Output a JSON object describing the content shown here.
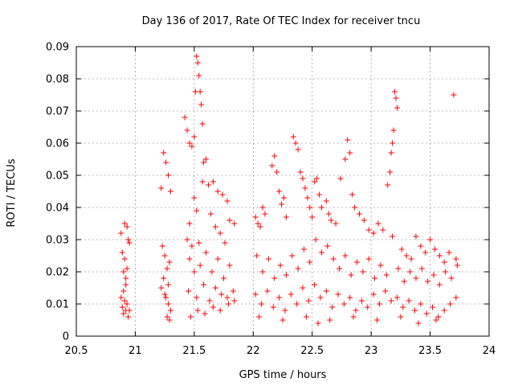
{
  "chart_data": {
    "type": "scatter",
    "title": "Day 136 of 2017, Rate Of TEC Index for receiver tncu",
    "xlabel": "GPS time / hours",
    "ylabel": "ROTI / TECUs",
    "xlim": [
      20.5,
      24
    ],
    "ylim": [
      0,
      0.09
    ],
    "x_ticks": [
      20.5,
      21,
      21.5,
      22,
      22.5,
      23,
      23.5,
      24
    ],
    "x_tick_labels": [
      "20.5",
      "21",
      "21.5",
      "22",
      "22.5",
      "23",
      "23.5",
      "24"
    ],
    "y_ticks": [
      0,
      0.01,
      0.02,
      0.03,
      0.04,
      0.05,
      0.06,
      0.07,
      0.08,
      0.09
    ],
    "y_tick_labels": [
      "0",
      "0.01",
      "0.02",
      "0.03",
      "0.04",
      "0.05",
      "0.06",
      "0.07",
      "0.08",
      "0.09"
    ],
    "grid": true,
    "marker": "+",
    "series": [
      {
        "name": "ROTI",
        "color": "#ff0000",
        "points": [
          [
            20.88,
            0.032
          ],
          [
            20.89,
            0.026
          ],
          [
            20.9,
            0.02
          ],
          [
            20.91,
            0.035
          ],
          [
            20.92,
            0.018
          ],
          [
            20.93,
            0.034
          ],
          [
            20.94,
            0.03
          ],
          [
            20.89,
            0.009
          ],
          [
            20.9,
            0.007
          ],
          [
            20.91,
            0.011
          ],
          [
            20.92,
            0.008
          ],
          [
            20.93,
            0.01
          ],
          [
            20.94,
            0.006
          ],
          [
            20.9,
            0.014
          ],
          [
            20.92,
            0.016
          ],
          [
            20.95,
            0.029
          ],
          [
            20.88,
            0.012
          ],
          [
            20.91,
            0.024
          ],
          [
            20.93,
            0.021
          ],
          [
            20.95,
            0.008
          ],
          [
            21.22,
            0.046
          ],
          [
            21.24,
            0.057
          ],
          [
            21.26,
            0.054
          ],
          [
            21.28,
            0.05
          ],
          [
            21.3,
            0.045
          ],
          [
            21.23,
            0.028
          ],
          [
            21.25,
            0.025
          ],
          [
            21.27,
            0.021
          ],
          [
            21.29,
            0.023
          ],
          [
            21.24,
            0.018
          ],
          [
            21.26,
            0.012
          ],
          [
            21.28,
            0.01
          ],
          [
            21.3,
            0.008
          ],
          [
            21.27,
            0.006
          ],
          [
            21.29,
            0.005
          ],
          [
            21.22,
            0.015
          ],
          [
            21.25,
            0.013
          ],
          [
            21.28,
            0.016
          ],
          [
            21.42,
            0.068
          ],
          [
            21.44,
            0.064
          ],
          [
            21.46,
            0.06
          ],
          [
            21.48,
            0.059
          ],
          [
            21.5,
            0.062
          ],
          [
            21.52,
            0.087
          ],
          [
            21.53,
            0.085
          ],
          [
            21.54,
            0.081
          ],
          [
            21.51,
            0.076
          ],
          [
            21.55,
            0.076
          ],
          [
            21.56,
            0.072
          ],
          [
            21.57,
            0.066
          ],
          [
            21.58,
            0.054
          ],
          [
            21.6,
            0.055
          ],
          [
            21.57,
            0.048
          ],
          [
            21.5,
            0.043
          ],
          [
            21.52,
            0.039
          ],
          [
            21.46,
            0.035
          ],
          [
            21.44,
            0.03
          ],
          [
            21.48,
            0.028
          ],
          [
            21.54,
            0.029
          ],
          [
            21.62,
            0.047
          ],
          [
            21.66,
            0.048
          ],
          [
            21.7,
            0.045
          ],
          [
            21.74,
            0.044
          ],
          [
            21.78,
            0.042
          ],
          [
            21.64,
            0.038
          ],
          [
            21.68,
            0.034
          ],
          [
            21.72,
            0.032
          ],
          [
            21.76,
            0.029
          ],
          [
            21.8,
            0.036
          ],
          [
            21.84,
            0.035
          ],
          [
            21.46,
            0.024
          ],
          [
            21.5,
            0.02
          ],
          [
            21.55,
            0.022
          ],
          [
            21.6,
            0.026
          ],
          [
            21.65,
            0.02
          ],
          [
            21.7,
            0.024
          ],
          [
            21.75,
            0.018
          ],
          [
            21.8,
            0.022
          ],
          [
            21.45,
            0.014
          ],
          [
            21.52,
            0.012
          ],
          [
            21.58,
            0.016
          ],
          [
            21.63,
            0.011
          ],
          [
            21.68,
            0.015
          ],
          [
            21.73,
            0.013
          ],
          [
            21.78,
            0.012
          ],
          [
            21.83,
            0.014
          ],
          [
            21.47,
            0.006
          ],
          [
            21.53,
            0.008
          ],
          [
            21.59,
            0.007
          ],
          [
            21.66,
            0.009
          ],
          [
            21.72,
            0.008
          ],
          [
            21.79,
            0.01
          ],
          [
            21.84,
            0.011
          ],
          [
            22.02,
            0.037
          ],
          [
            22.04,
            0.035
          ],
          [
            22.06,
            0.034
          ],
          [
            22.08,
            0.04
          ],
          [
            22.1,
            0.038
          ],
          [
            22.16,
            0.053
          ],
          [
            22.18,
            0.056
          ],
          [
            22.2,
            0.051
          ],
          [
            22.22,
            0.045
          ],
          [
            22.24,
            0.041
          ],
          [
            22.26,
            0.043
          ],
          [
            22.28,
            0.037
          ],
          [
            22.34,
            0.062
          ],
          [
            22.36,
            0.06
          ],
          [
            22.38,
            0.058
          ],
          [
            22.4,
            0.051
          ],
          [
            22.42,
            0.049
          ],
          [
            22.44,
            0.046
          ],
          [
            22.46,
            0.043
          ],
          [
            22.48,
            0.04
          ],
          [
            22.5,
            0.037
          ],
          [
            22.52,
            0.048
          ],
          [
            22.54,
            0.049
          ],
          [
            22.56,
            0.044
          ],
          [
            22.58,
            0.04
          ],
          [
            22.62,
            0.042
          ],
          [
            22.64,
            0.038
          ],
          [
            22.66,
            0.036
          ],
          [
            22.7,
            0.035
          ],
          [
            22.74,
            0.049
          ],
          [
            22.78,
            0.055
          ],
          [
            22.8,
            0.061
          ],
          [
            22.82,
            0.057
          ],
          [
            22.84,
            0.044
          ],
          [
            22.86,
            0.04
          ],
          [
            22.9,
            0.038
          ],
          [
            22.94,
            0.036
          ],
          [
            22.98,
            0.033
          ],
          [
            23.02,
            0.032
          ],
          [
            23.06,
            0.035
          ],
          [
            23.1,
            0.033
          ],
          [
            23.14,
            0.047
          ],
          [
            23.16,
            0.051
          ],
          [
            23.17,
            0.057
          ],
          [
            23.18,
            0.06
          ],
          [
            23.19,
            0.064
          ],
          [
            23.2,
            0.076
          ],
          [
            23.21,
            0.074
          ],
          [
            23.22,
            0.071
          ],
          [
            23.18,
            0.031
          ],
          [
            23.26,
            0.027
          ],
          [
            23.3,
            0.025
          ],
          [
            23.34,
            0.024
          ],
          [
            23.38,
            0.031
          ],
          [
            23.42,
            0.028
          ],
          [
            23.46,
            0.026
          ],
          [
            23.5,
            0.03
          ],
          [
            23.54,
            0.027
          ],
          [
            23.58,
            0.025
          ],
          [
            23.62,
            0.023
          ],
          [
            23.66,
            0.026
          ],
          [
            23.7,
            0.075
          ],
          [
            23.72,
            0.024
          ],
          [
            22.03,
            0.025
          ],
          [
            22.08,
            0.02
          ],
          [
            22.13,
            0.024
          ],
          [
            22.18,
            0.018
          ],
          [
            22.23,
            0.022
          ],
          [
            22.28,
            0.019
          ],
          [
            22.33,
            0.025
          ],
          [
            22.38,
            0.021
          ],
          [
            22.43,
            0.027
          ],
          [
            22.48,
            0.023
          ],
          [
            22.53,
            0.03
          ],
          [
            22.58,
            0.026
          ],
          [
            22.63,
            0.028
          ],
          [
            22.68,
            0.024
          ],
          [
            22.73,
            0.021
          ],
          [
            22.78,
            0.025
          ],
          [
            22.83,
            0.019
          ],
          [
            22.88,
            0.023
          ],
          [
            22.93,
            0.02
          ],
          [
            22.98,
            0.024
          ],
          [
            23.03,
            0.018
          ],
          [
            23.08,
            0.022
          ],
          [
            23.13,
            0.019
          ],
          [
            23.23,
            0.021
          ],
          [
            23.28,
            0.017
          ],
          [
            23.33,
            0.02
          ],
          [
            23.38,
            0.018
          ],
          [
            23.43,
            0.021
          ],
          [
            23.48,
            0.017
          ],
          [
            23.53,
            0.019
          ],
          [
            23.58,
            0.016
          ],
          [
            23.63,
            0.02
          ],
          [
            23.68,
            0.018
          ],
          [
            23.73,
            0.022
          ],
          [
            22.02,
            0.013
          ],
          [
            22.07,
            0.01
          ],
          [
            22.12,
            0.014
          ],
          [
            22.17,
            0.009
          ],
          [
            22.22,
            0.012
          ],
          [
            22.27,
            0.008
          ],
          [
            22.32,
            0.013
          ],
          [
            22.37,
            0.01
          ],
          [
            22.42,
            0.015
          ],
          [
            22.47,
            0.011
          ],
          [
            22.52,
            0.016
          ],
          [
            22.57,
            0.012
          ],
          [
            22.62,
            0.014
          ],
          [
            22.67,
            0.009
          ],
          [
            22.72,
            0.013
          ],
          [
            22.77,
            0.01
          ],
          [
            22.82,
            0.012
          ],
          [
            22.87,
            0.008
          ],
          [
            22.92,
            0.011
          ],
          [
            22.97,
            0.009
          ],
          [
            23.02,
            0.013
          ],
          [
            23.07,
            0.01
          ],
          [
            23.12,
            0.014
          ],
          [
            23.17,
            0.011
          ],
          [
            23.22,
            0.012
          ],
          [
            23.27,
            0.009
          ],
          [
            23.32,
            0.011
          ],
          [
            23.37,
            0.008
          ],
          [
            23.42,
            0.01
          ],
          [
            23.47,
            0.007
          ],
          [
            23.52,
            0.009
          ],
          [
            23.57,
            0.006
          ],
          [
            23.62,
            0.008
          ],
          [
            23.67,
            0.01
          ],
          [
            23.72,
            0.012
          ],
          [
            22.05,
            0.006
          ],
          [
            22.25,
            0.005
          ],
          [
            22.45,
            0.006
          ],
          [
            22.55,
            0.004
          ],
          [
            22.65,
            0.005
          ],
          [
            22.85,
            0.006
          ],
          [
            23.05,
            0.005
          ],
          [
            23.25,
            0.006
          ],
          [
            23.4,
            0.004
          ],
          [
            23.55,
            0.005
          ]
        ]
      }
    ]
  }
}
